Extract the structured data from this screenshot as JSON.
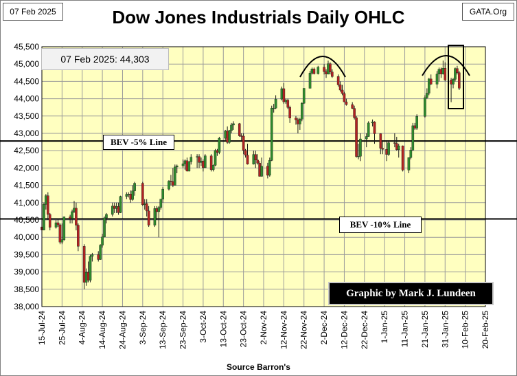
{
  "header": {
    "date_tag": "07 Feb 2025",
    "site_tag": "GATA.Org"
  },
  "colors": {
    "plot_bg": "#ffffc0",
    "up": "#2e8b2e",
    "down": "#b22222",
    "grid": "#9a9a9a"
  },
  "annotations": {
    "readout": "07 Feb 2025:  44,303",
    "bev5": "BEV -5% Line",
    "bev10": "BEV -10% Line",
    "credit": "Graphic by Mark J. Lundeen",
    "source": "Source Barron's"
  },
  "chart_data": {
    "type": "candlestick",
    "title": "Dow Jones Industrials Daily OHLC",
    "xlabel": "Source Barron's",
    "ylabel": "",
    "ylim": [
      38000,
      45500
    ],
    "yticks": [
      38000,
      38500,
      39000,
      39500,
      40000,
      40500,
      41000,
      41500,
      42000,
      42500,
      43000,
      43500,
      44000,
      44500,
      45000,
      45500
    ],
    "xlim": [
      "2024-07-15",
      "2025-02-20"
    ],
    "xtick_labels": [
      "15-Jul-24",
      "25-Jul-24",
      "4-Aug-24",
      "14-Aug-24",
      "24-Aug-24",
      "3-Sep-24",
      "13-Sep-24",
      "23-Sep-24",
      "3-Oct-24",
      "13-Oct-24",
      "23-Oct-24",
      "2-Nov-24",
      "12-Nov-24",
      "22-Nov-24",
      "2-Dec-24",
      "12-Dec-24",
      "22-Dec-24",
      "1-Jan-25",
      "11-Jan-25",
      "21-Jan-25",
      "31-Jan-25",
      "10-Feb-25",
      "20-Feb-25"
    ],
    "grid": true,
    "reference_lines": [
      {
        "label": "BEV -5% Line",
        "value": 42780
      },
      {
        "label": "BEV -10% Line",
        "value": 40530
      }
    ],
    "ohlc": [
      [
        "2024-07-15",
        40300,
        40500,
        40100,
        40210
      ],
      [
        "2024-07-16",
        40210,
        41000,
        40200,
        40950
      ],
      [
        "2024-07-17",
        40950,
        41250,
        40800,
        41200
      ],
      [
        "2024-07-18",
        41200,
        41300,
        40500,
        40660
      ],
      [
        "2024-07-19",
        40660,
        40700,
        40200,
        40290
      ],
      [
        "2024-07-22",
        40290,
        40500,
        40250,
        40420
      ],
      [
        "2024-07-23",
        40420,
        40550,
        40300,
        40360
      ],
      [
        "2024-07-24",
        40360,
        40400,
        39800,
        39860
      ],
      [
        "2024-07-25",
        39860,
        40400,
        39800,
        39930
      ],
      [
        "2024-07-26",
        39930,
        40600,
        39900,
        40590
      ],
      [
        "2024-07-29",
        40590,
        40650,
        40400,
        40540
      ],
      [
        "2024-07-30",
        40540,
        40800,
        40400,
        40740
      ],
      [
        "2024-07-31",
        40740,
        41050,
        40700,
        40840
      ],
      [
        "2024-08-01",
        40840,
        41000,
        40200,
        40350
      ],
      [
        "2024-08-02",
        40350,
        40400,
        39600,
        39740
      ],
      [
        "2024-08-05",
        39740,
        39800,
        38500,
        38700
      ],
      [
        "2024-08-06",
        38700,
        39100,
        38600,
        38990
      ],
      [
        "2024-08-07",
        38990,
        39300,
        38700,
        38760
      ],
      [
        "2024-08-08",
        38760,
        39500,
        38700,
        39450
      ],
      [
        "2024-08-09",
        39450,
        39550,
        39300,
        39500
      ],
      [
        "2024-08-12",
        39500,
        39600,
        39300,
        39360
      ],
      [
        "2024-08-13",
        39360,
        39800,
        39350,
        39770
      ],
      [
        "2024-08-14",
        39770,
        40100,
        39700,
        40010
      ],
      [
        "2024-08-15",
        40010,
        40600,
        40000,
        40560
      ],
      [
        "2024-08-16",
        40560,
        40700,
        40400,
        40660
      ],
      [
        "2024-08-19",
        40660,
        41000,
        40600,
        40900
      ],
      [
        "2024-08-20",
        40900,
        41000,
        40700,
        40830
      ],
      [
        "2024-08-21",
        40830,
        41000,
        40700,
        40890
      ],
      [
        "2024-08-22",
        40890,
        41000,
        40650,
        40710
      ],
      [
        "2024-08-23",
        40710,
        41200,
        40700,
        41180
      ],
      [
        "2024-08-26",
        41180,
        41300,
        41100,
        41240
      ],
      [
        "2024-08-27",
        41240,
        41300,
        41150,
        41250
      ],
      [
        "2024-08-28",
        41250,
        41350,
        41000,
        41090
      ],
      [
        "2024-08-29",
        41090,
        41500,
        41050,
        41340
      ],
      [
        "2024-08-30",
        41340,
        41600,
        41200,
        41560
      ],
      [
        "2024-09-03",
        41560,
        41600,
        40900,
        40940
      ],
      [
        "2024-09-04",
        40940,
        41100,
        40800,
        40970
      ],
      [
        "2024-09-05",
        40970,
        41100,
        40600,
        40760
      ],
      [
        "2024-09-06",
        40760,
        40900,
        40300,
        40350
      ],
      [
        "2024-09-09",
        40350,
        40900,
        40300,
        40830
      ],
      [
        "2024-09-10",
        40830,
        40900,
        40500,
        40740
      ],
      [
        "2024-09-11",
        40740,
        40900,
        40000,
        40860
      ],
      [
        "2024-09-12",
        40860,
        41100,
        40800,
        41100
      ],
      [
        "2024-09-13",
        41100,
        41450,
        41000,
        41390
      ],
      [
        "2024-09-16",
        41390,
        41650,
        41350,
        41620
      ],
      [
        "2024-09-17",
        41620,
        41800,
        41500,
        41610
      ],
      [
        "2024-09-18",
        41610,
        42000,
        41450,
        41500
      ],
      [
        "2024-09-19",
        41500,
        42100,
        41500,
        42030
      ],
      [
        "2024-09-20",
        42030,
        42100,
        41850,
        42060
      ],
      [
        "2024-09-23",
        42060,
        42250,
        42000,
        42120
      ],
      [
        "2024-09-24",
        42120,
        42250,
        41950,
        42210
      ],
      [
        "2024-09-25",
        42210,
        42300,
        41900,
        41910
      ],
      [
        "2024-09-26",
        41910,
        42200,
        41900,
        42180
      ],
      [
        "2024-09-27",
        42180,
        42400,
        42100,
        42310
      ],
      [
        "2024-09-30",
        42310,
        42400,
        42000,
        42330
      ],
      [
        "2024-10-01",
        42330,
        42400,
        42000,
        42160
      ],
      [
        "2024-10-02",
        42160,
        42300,
        42050,
        42200
      ],
      [
        "2024-10-03",
        42200,
        42250,
        41900,
        42010
      ],
      [
        "2024-10-04",
        42010,
        42400,
        42000,
        42350
      ],
      [
        "2024-10-07",
        42350,
        42400,
        41900,
        41950
      ],
      [
        "2024-10-08",
        41950,
        42100,
        41900,
        42080
      ],
      [
        "2024-10-09",
        42080,
        42550,
        42050,
        42510
      ],
      [
        "2024-10-10",
        42510,
        42550,
        42350,
        42450
      ],
      [
        "2024-10-11",
        42450,
        42900,
        42400,
        42860
      ],
      [
        "2024-10-14",
        42860,
        43100,
        42800,
        43070
      ],
      [
        "2024-10-15",
        43070,
        43200,
        42700,
        42740
      ],
      [
        "2024-10-16",
        42740,
        43100,
        42700,
        43080
      ],
      [
        "2024-10-17",
        43080,
        43300,
        43000,
        43240
      ],
      [
        "2024-10-18",
        43240,
        43350,
        43100,
        43280
      ],
      [
        "2024-10-21",
        43280,
        43300,
        42900,
        42930
      ],
      [
        "2024-10-22",
        42930,
        43000,
        42800,
        42920
      ],
      [
        "2024-10-23",
        42920,
        43000,
        42400,
        42510
      ],
      [
        "2024-10-24",
        42510,
        42550,
        42300,
        42370
      ],
      [
        "2024-10-25",
        42370,
        42700,
        42100,
        42110
      ],
      [
        "2024-10-28",
        42110,
        42500,
        42100,
        42390
      ],
      [
        "2024-10-29",
        42390,
        42500,
        42000,
        42230
      ],
      [
        "2024-10-30",
        42230,
        42400,
        42100,
        42140
      ],
      [
        "2024-10-31",
        42140,
        42200,
        41750,
        41760
      ],
      [
        "2024-11-01",
        41760,
        42300,
        41750,
        42050
      ],
      [
        "2024-11-04",
        42050,
        42150,
        41700,
        41790
      ],
      [
        "2024-11-05",
        41790,
        42300,
        41750,
        42220
      ],
      [
        "2024-11-06",
        42220,
        43800,
        42200,
        43730
      ],
      [
        "2024-11-07",
        43730,
        43850,
        43600,
        43730
      ],
      [
        "2024-11-08",
        43730,
        44100,
        43700,
        43990
      ],
      [
        "2024-11-11",
        43990,
        44350,
        43950,
        44290
      ],
      [
        "2024-11-12",
        44290,
        44450,
        43850,
        43910
      ],
      [
        "2024-11-13",
        43910,
        44000,
        43850,
        43960
      ],
      [
        "2024-11-14",
        43960,
        44000,
        43700,
        43750
      ],
      [
        "2024-11-15",
        43750,
        43800,
        43300,
        43440
      ],
      [
        "2024-11-18",
        43440,
        43500,
        43250,
        43390
      ],
      [
        "2024-11-19",
        43390,
        43450,
        43000,
        43270
      ],
      [
        "2024-11-20",
        43270,
        43450,
        43100,
        43410
      ],
      [
        "2024-11-21",
        43410,
        43900,
        43350,
        43870
      ],
      [
        "2024-11-22",
        43870,
        44300,
        43850,
        44300
      ],
      [
        "2024-11-25",
        44300,
        44800,
        44300,
        44740
      ],
      [
        "2024-11-26",
        44740,
        44900,
        44700,
        44860
      ],
      [
        "2024-11-27",
        44860,
        44900,
        44700,
        44720
      ],
      [
        "2024-11-29",
        44720,
        44950,
        44700,
        44910
      ],
      [
        "2024-12-02",
        44910,
        45000,
        44700,
        44780
      ],
      [
        "2024-12-03",
        44780,
        44850,
        44600,
        44710
      ],
      [
        "2024-12-04",
        44710,
        45100,
        44700,
        45010
      ],
      [
        "2024-12-05",
        45010,
        45050,
        44700,
        44770
      ],
      [
        "2024-12-06",
        44770,
        44850,
        44600,
        44640
      ],
      [
        "2024-12-09",
        44640,
        44700,
        44350,
        44400
      ],
      [
        "2024-12-10",
        44400,
        44500,
        44200,
        44250
      ],
      [
        "2024-12-11",
        44250,
        44400,
        44100,
        44150
      ],
      [
        "2024-12-12",
        44150,
        44200,
        43900,
        43910
      ],
      [
        "2024-12-13",
        43910,
        44000,
        43800,
        43830
      ],
      [
        "2024-12-16",
        43830,
        43900,
        43700,
        43720
      ],
      [
        "2024-12-17",
        43720,
        43800,
        43400,
        43450
      ],
      [
        "2024-12-18",
        43450,
        43500,
        42300,
        42330
      ],
      [
        "2024-12-19",
        42330,
        42700,
        42250,
        42340
      ],
      [
        "2024-12-20",
        42340,
        43000,
        42200,
        42840
      ],
      [
        "2024-12-23",
        42840,
        43000,
        42600,
        42910
      ],
      [
        "2024-12-24",
        42910,
        43350,
        42900,
        43300
      ],
      [
        "2024-12-26",
        43300,
        43400,
        43200,
        43330
      ],
      [
        "2024-12-27",
        43330,
        43350,
        42700,
        42990
      ],
      [
        "2024-12-30",
        42990,
        43000,
        42400,
        42570
      ],
      [
        "2024-12-31",
        42570,
        42800,
        42400,
        42540
      ],
      [
        "2025-01-02",
        42540,
        42800,
        42200,
        42390
      ],
      [
        "2025-01-03",
        42390,
        42800,
        42350,
        42730
      ],
      [
        "2025-01-06",
        42730,
        43000,
        42600,
        42710
      ],
      [
        "2025-01-07",
        42710,
        42900,
        42500,
        42530
      ],
      [
        "2025-01-08",
        42530,
        42700,
        42300,
        42640
      ],
      [
        "2025-01-10",
        42640,
        42650,
        41900,
        41940
      ],
      [
        "2025-01-13",
        41940,
        42300,
        41850,
        42300
      ],
      [
        "2025-01-14",
        42300,
        42600,
        42250,
        42520
      ],
      [
        "2025-01-15",
        42520,
        43300,
        42500,
        43220
      ],
      [
        "2025-01-16",
        43220,
        43300,
        43100,
        43150
      ],
      [
        "2025-01-17",
        43150,
        43550,
        43100,
        43490
      ],
      [
        "2025-01-21",
        43490,
        44100,
        43450,
        44030
      ],
      [
        "2025-01-22",
        44030,
        44300,
        44000,
        44160
      ],
      [
        "2025-01-23",
        44160,
        44600,
        44100,
        44570
      ],
      [
        "2025-01-24",
        44570,
        44700,
        44400,
        44420
      ],
      [
        "2025-01-27",
        44420,
        44800,
        44300,
        44710
      ],
      [
        "2025-01-28",
        44710,
        44900,
        44500,
        44850
      ],
      [
        "2025-01-29",
        44850,
        44900,
        44600,
        44710
      ],
      [
        "2025-01-30",
        44710,
        45100,
        44700,
        44880
      ],
      [
        "2025-01-31",
        44880,
        45050,
        44500,
        44540
      ],
      [
        "2025-02-03",
        44540,
        44600,
        43900,
        44420
      ],
      [
        "2025-02-04",
        44420,
        44600,
        44300,
        44560
      ],
      [
        "2025-02-05",
        44560,
        44900,
        44500,
        44870
      ],
      [
        "2025-02-06",
        44870,
        44950,
        44700,
        44750
      ],
      [
        "2025-02-07",
        44750,
        44800,
        44250,
        44303
      ]
    ]
  }
}
